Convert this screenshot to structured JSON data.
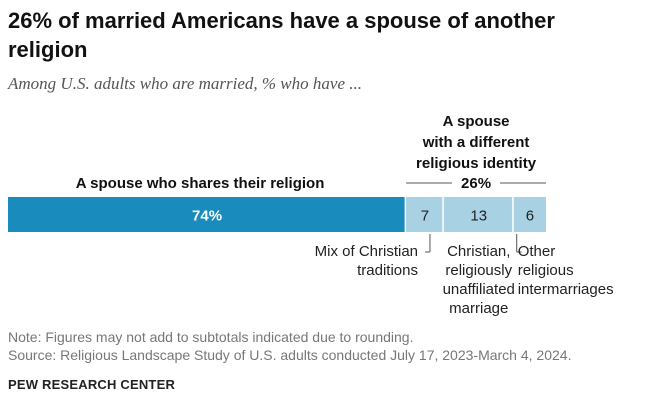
{
  "title": "26% of married Americans have a spouse of another religion",
  "subtitle": "Among U.S. adults who are married, % who have ...",
  "chart_data": {
    "type": "bar",
    "orientation": "horizontal-stacked",
    "title": "26% of married Americans have a spouse of another religion",
    "xlim": [
      0,
      100
    ],
    "segments": [
      {
        "name": "A spouse who shares their religion",
        "value": 74,
        "label": "74%",
        "color": "#1a8bbd"
      },
      {
        "name": "Mix of Christian traditions",
        "value": 7,
        "label": "7",
        "color": "#a8d1e4"
      },
      {
        "name": "Christian, religiously unaffiliated marriage",
        "value": 13,
        "label": "13",
        "color": "#a8d1e4"
      },
      {
        "name": "Other religious intermarriages",
        "value": 6,
        "label": "6",
        "color": "#a8d1e4"
      }
    ],
    "group_label_same": "A spouse who shares their religion",
    "group_label_different": [
      "A spouse",
      "with a different",
      "religious identity"
    ],
    "group_total_different": "26%",
    "segment_callouts": [
      [
        "Mix of Christian",
        "traditions"
      ],
      [
        "Christian,",
        "religiously",
        "unaffiliated",
        "marriage"
      ],
      [
        "Other",
        "religious",
        "intermarriages"
      ]
    ]
  },
  "note": "Note: Figures may not add to subtotals indicated due to rounding.",
  "source": "Source: Religious Landscape Study of U.S. adults conducted July 17, 2023-March 4, 2024.",
  "brand": "PEW RESEARCH CENTER"
}
